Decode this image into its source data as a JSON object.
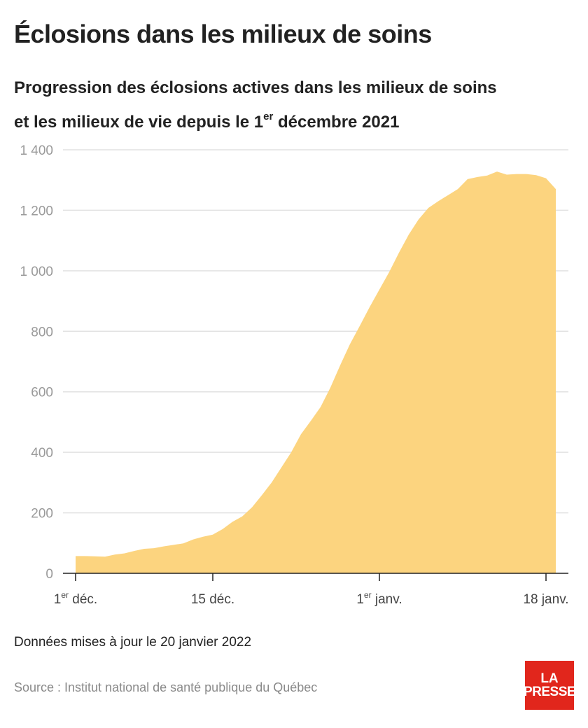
{
  "header": {
    "title": "Éclosions dans les milieux de soins",
    "subtitle_line1": "Progression des éclosions actives dans les milieux de soins",
    "subtitle_line2_prefix": "et les milieux de vie depuis le 1",
    "subtitle_line2_sup": "er",
    "subtitle_line2_suffix": " décembre 2021"
  },
  "footer": {
    "note": "Données mises à jour le 20 janvier 2022",
    "source": "Source : Institut national de santé publique du Québec",
    "logo_line1": "LA",
    "logo_line2": "PRESSE"
  },
  "colors": {
    "area": "#fcd47f",
    "grid": "#e2e2e2",
    "tick_text": "#9a9a9a",
    "axis": "#222222",
    "logo_bg": "#e1261c"
  },
  "chart_data": {
    "type": "area",
    "title": "Progression des éclosions actives dans les milieux de soins et les milieux de vie depuis le 1er décembre 2021",
    "xlabel": "",
    "ylabel": "",
    "grid": true,
    "ylim": [
      0,
      1400
    ],
    "y_ticks": [
      {
        "value": 0,
        "label": "0"
      },
      {
        "value": 200,
        "label": "200"
      },
      {
        "value": 400,
        "label": "400"
      },
      {
        "value": 600,
        "label": "600"
      },
      {
        "value": 800,
        "label": "800"
      },
      {
        "value": 1000,
        "label": "1 000"
      },
      {
        "value": 1200,
        "label": "1 200"
      },
      {
        "value": 1400,
        "label": "1 400"
      }
    ],
    "x_ticks": [
      {
        "day": 0,
        "label": "1",
        "sup": "er",
        "suffix": " déc."
      },
      {
        "day": 14,
        "label": "15 déc.",
        "sup": "",
        "suffix": ""
      },
      {
        "day": 31,
        "label": "1",
        "sup": "er",
        "suffix": " janv."
      },
      {
        "day": 48,
        "label": "18 janv.",
        "sup": "",
        "suffix": ""
      }
    ],
    "series": [
      {
        "x": [
          "2021-12-01",
          "2021-12-02",
          "2021-12-03",
          "2021-12-04",
          "2021-12-05",
          "2021-12-06",
          "2021-12-07",
          "2021-12-08",
          "2021-12-09",
          "2021-12-10",
          "2021-12-11",
          "2021-12-12",
          "2021-12-13",
          "2021-12-14",
          "2021-12-15",
          "2021-12-16",
          "2021-12-17",
          "2021-12-18",
          "2021-12-19",
          "2021-12-20",
          "2021-12-21",
          "2021-12-22",
          "2021-12-23",
          "2021-12-24",
          "2021-12-25",
          "2021-12-26",
          "2021-12-27",
          "2021-12-28",
          "2021-12-29",
          "2021-12-30",
          "2021-12-31",
          "2022-01-01",
          "2022-01-02",
          "2022-01-03",
          "2022-01-04",
          "2022-01-05",
          "2022-01-06",
          "2022-01-07",
          "2022-01-08",
          "2022-01-09",
          "2022-01-10",
          "2022-01-11",
          "2022-01-12",
          "2022-01-13",
          "2022-01-14",
          "2022-01-15",
          "2022-01-16",
          "2022-01-17",
          "2022-01-18",
          "2022-01-19"
        ],
        "values": [
          57,
          57,
          56,
          55,
          62,
          66,
          74,
          81,
          83,
          89,
          94,
          99,
          112,
          121,
          128,
          146,
          170,
          188,
          218,
          258,
          300,
          350,
          400,
          460,
          504,
          550,
          614,
          688,
          758,
          818,
          880,
          938,
          996,
          1060,
          1120,
          1170,
          1208,
          1230,
          1250,
          1270,
          1303,
          1310,
          1315,
          1328,
          1318,
          1320,
          1320,
          1316,
          1306,
          1270
        ]
      }
    ]
  }
}
